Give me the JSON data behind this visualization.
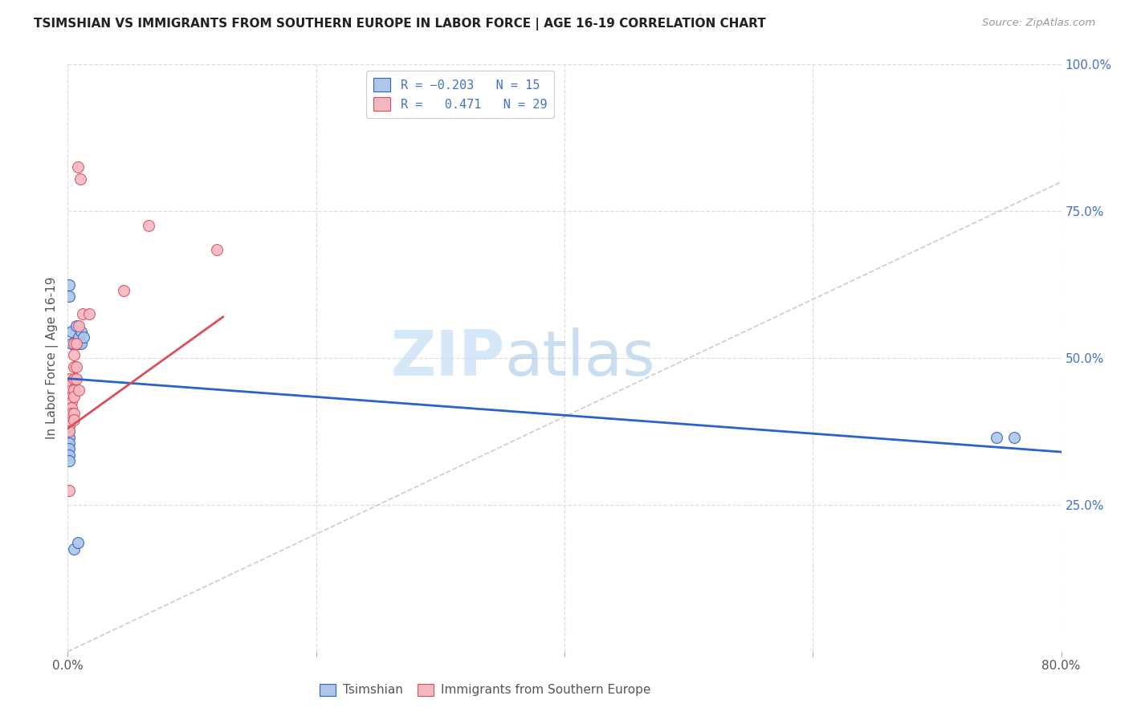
{
  "title": "TSIMSHIAN VS IMMIGRANTS FROM SOUTHERN EUROPE IN LABOR FORCE | AGE 16-19 CORRELATION CHART",
  "source": "Source: ZipAtlas.com",
  "ylabel": "In Labor Force | Age 16-19",
  "xmin": 0.0,
  "xmax": 0.8,
  "ymin": 0.0,
  "ymax": 1.0,
  "tsimshian_color": "#aec6e8",
  "immigrants_color": "#f4b8c1",
  "tsimshian_line_color": "#2962cc",
  "immigrants_line_color": "#d94f5c",
  "diagonal_color": "#cccccc",
  "tsimshian_points": [
    [
      0.001,
      0.625
    ],
    [
      0.001,
      0.605
    ],
    [
      0.003,
      0.545
    ],
    [
      0.003,
      0.525
    ],
    [
      0.007,
      0.555
    ],
    [
      0.007,
      0.525
    ],
    [
      0.009,
      0.535
    ],
    [
      0.009,
      0.525
    ],
    [
      0.011,
      0.545
    ],
    [
      0.011,
      0.525
    ],
    [
      0.013,
      0.535
    ],
    [
      0.001,
      0.455
    ],
    [
      0.001,
      0.445
    ],
    [
      0.001,
      0.435
    ],
    [
      0.001,
      0.425
    ],
    [
      0.001,
      0.415
    ],
    [
      0.001,
      0.405
    ],
    [
      0.001,
      0.395
    ],
    [
      0.001,
      0.385
    ],
    [
      0.001,
      0.375
    ],
    [
      0.001,
      0.365
    ],
    [
      0.001,
      0.355
    ],
    [
      0.001,
      0.345
    ],
    [
      0.003,
      0.455
    ],
    [
      0.003,
      0.445
    ],
    [
      0.001,
      0.335
    ],
    [
      0.001,
      0.325
    ],
    [
      0.005,
      0.175
    ],
    [
      0.008,
      0.185
    ],
    [
      0.748,
      0.365
    ],
    [
      0.762,
      0.365
    ]
  ],
  "immigrants_points": [
    [
      0.001,
      0.465
    ],
    [
      0.001,
      0.455
    ],
    [
      0.001,
      0.445
    ],
    [
      0.001,
      0.435
    ],
    [
      0.001,
      0.425
    ],
    [
      0.001,
      0.415
    ],
    [
      0.001,
      0.405
    ],
    [
      0.001,
      0.395
    ],
    [
      0.001,
      0.385
    ],
    [
      0.001,
      0.375
    ],
    [
      0.003,
      0.455
    ],
    [
      0.003,
      0.445
    ],
    [
      0.003,
      0.435
    ],
    [
      0.003,
      0.425
    ],
    [
      0.003,
      0.415
    ],
    [
      0.003,
      0.405
    ],
    [
      0.005,
      0.525
    ],
    [
      0.005,
      0.505
    ],
    [
      0.005,
      0.485
    ],
    [
      0.005,
      0.465
    ],
    [
      0.005,
      0.445
    ],
    [
      0.005,
      0.435
    ],
    [
      0.005,
      0.405
    ],
    [
      0.005,
      0.395
    ],
    [
      0.007,
      0.525
    ],
    [
      0.007,
      0.485
    ],
    [
      0.007,
      0.465
    ],
    [
      0.009,
      0.555
    ],
    [
      0.009,
      0.445
    ],
    [
      0.012,
      0.575
    ],
    [
      0.017,
      0.575
    ],
    [
      0.045,
      0.615
    ],
    [
      0.001,
      0.275
    ],
    [
      0.008,
      0.825
    ],
    [
      0.01,
      0.805
    ],
    [
      0.065,
      0.725
    ],
    [
      0.12,
      0.685
    ]
  ],
  "tsimshian_line": {
    "x0": 0.0,
    "y0": 0.465,
    "x1": 0.8,
    "y1": 0.34
  },
  "immigrants_line": {
    "x0": 0.0,
    "y0": 0.38,
    "x1": 0.125,
    "y1": 0.57
  },
  "diagonal_line": {
    "x0": 0.0,
    "y0": 0.0,
    "x1": 0.8,
    "y1": 0.8
  }
}
